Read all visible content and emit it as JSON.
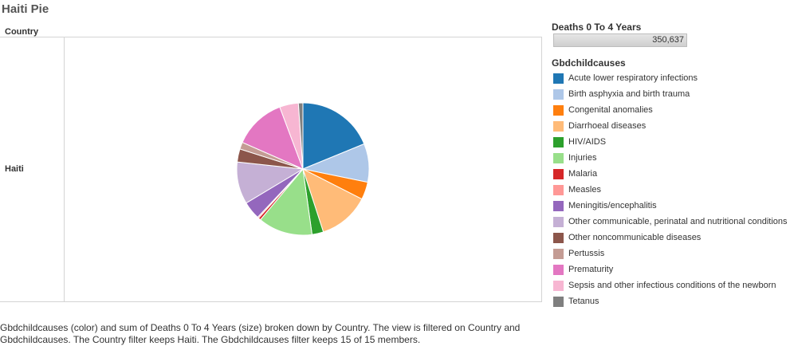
{
  "title": "Haiti Pie",
  "column_header": "Country",
  "row_header": "Haiti",
  "size_legend": {
    "title": "Deaths 0 To 4 Years",
    "value": "350,637"
  },
  "caption": "Gbdchildcauses (color) and sum of Deaths 0 To 4 Years (size) broken down by Country. The view is filtered on Country and Gbdchildcauses. The Country filter keeps Haiti. The Gbdchildcauses filter keeps 15 of 15 members.",
  "chart_data": {
    "type": "pie",
    "legend_title": "Gbdchildcauses",
    "legend_position": "right",
    "categories": [
      "Acute lower respiratory infections",
      "Birth asphyxia and birth trauma",
      "Congenital anomalies",
      "Diarrhoeal diseases",
      "HIV/AIDS",
      "Injuries",
      "Malaria",
      "Measles",
      "Meningitis/encephalitis",
      "Other communicable, perinatal and nutritional conditions",
      "Other noncommunicable diseases",
      "Pertussis",
      "Prematurity",
      "Sepsis and other infectious conditions of the newborn",
      "Tetanus"
    ],
    "values": [
      18.8,
      9.4,
      4.3,
      12.5,
      2.8,
      13.3,
      0.6,
      0.3,
      4.4,
      10.3,
      3.2,
      1.7,
      12.7,
      4.6,
      1.1
    ],
    "colors": [
      "#1f77b4",
      "#aec7e8",
      "#ff7f0e",
      "#ffbb78",
      "#2ca02c",
      "#98df8a",
      "#d62728",
      "#ff9896",
      "#9467bd",
      "#c5b0d5",
      "#8c564b",
      "#c49c94",
      "#e377c2",
      "#f7b6d2",
      "#7f7f7f"
    ]
  }
}
